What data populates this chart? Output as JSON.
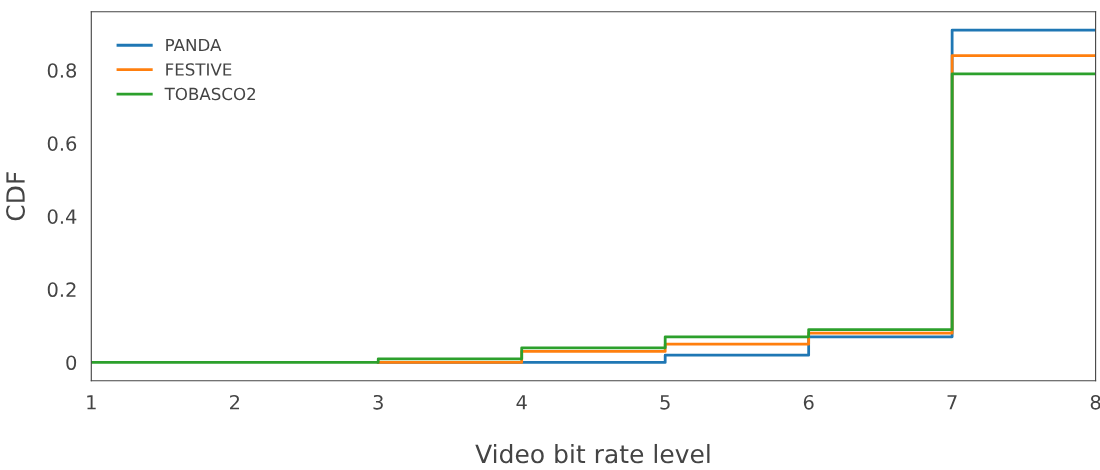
{
  "chart_data": {
    "type": "step",
    "xlabel": "Video bit rate level",
    "ylabel": "CDF",
    "x": [
      1,
      2,
      3,
      4,
      5,
      6,
      7,
      8
    ],
    "series": [
      {
        "name": "PANDA",
        "color": "#1f77b4",
        "values": [
          null,
          null,
          0,
          0,
          0.02,
          0.07,
          0.91,
          0.91
        ]
      },
      {
        "name": "FESTIVE",
        "color": "#ff7f0e",
        "values": [
          null,
          null,
          0,
          0.03,
          0.05,
          0.08,
          0.84,
          0.84
        ]
      },
      {
        "name": "TOBASCO2",
        "color": "#2ca02c",
        "values": [
          0,
          0,
          0.01,
          0.04,
          0.07,
          0.09,
          0.79,
          0.79
        ]
      }
    ],
    "xlim": [
      1,
      8
    ],
    "xticks": [
      1,
      2,
      3,
      4,
      5,
      6,
      7,
      8
    ],
    "ylim": [
      -0.05,
      0.96
    ],
    "yticks": [
      0,
      0.2,
      0.4,
      0.6,
      0.8
    ],
    "grid": false,
    "legend": "top left",
    "line_style": "solid",
    "marker": "none"
  }
}
